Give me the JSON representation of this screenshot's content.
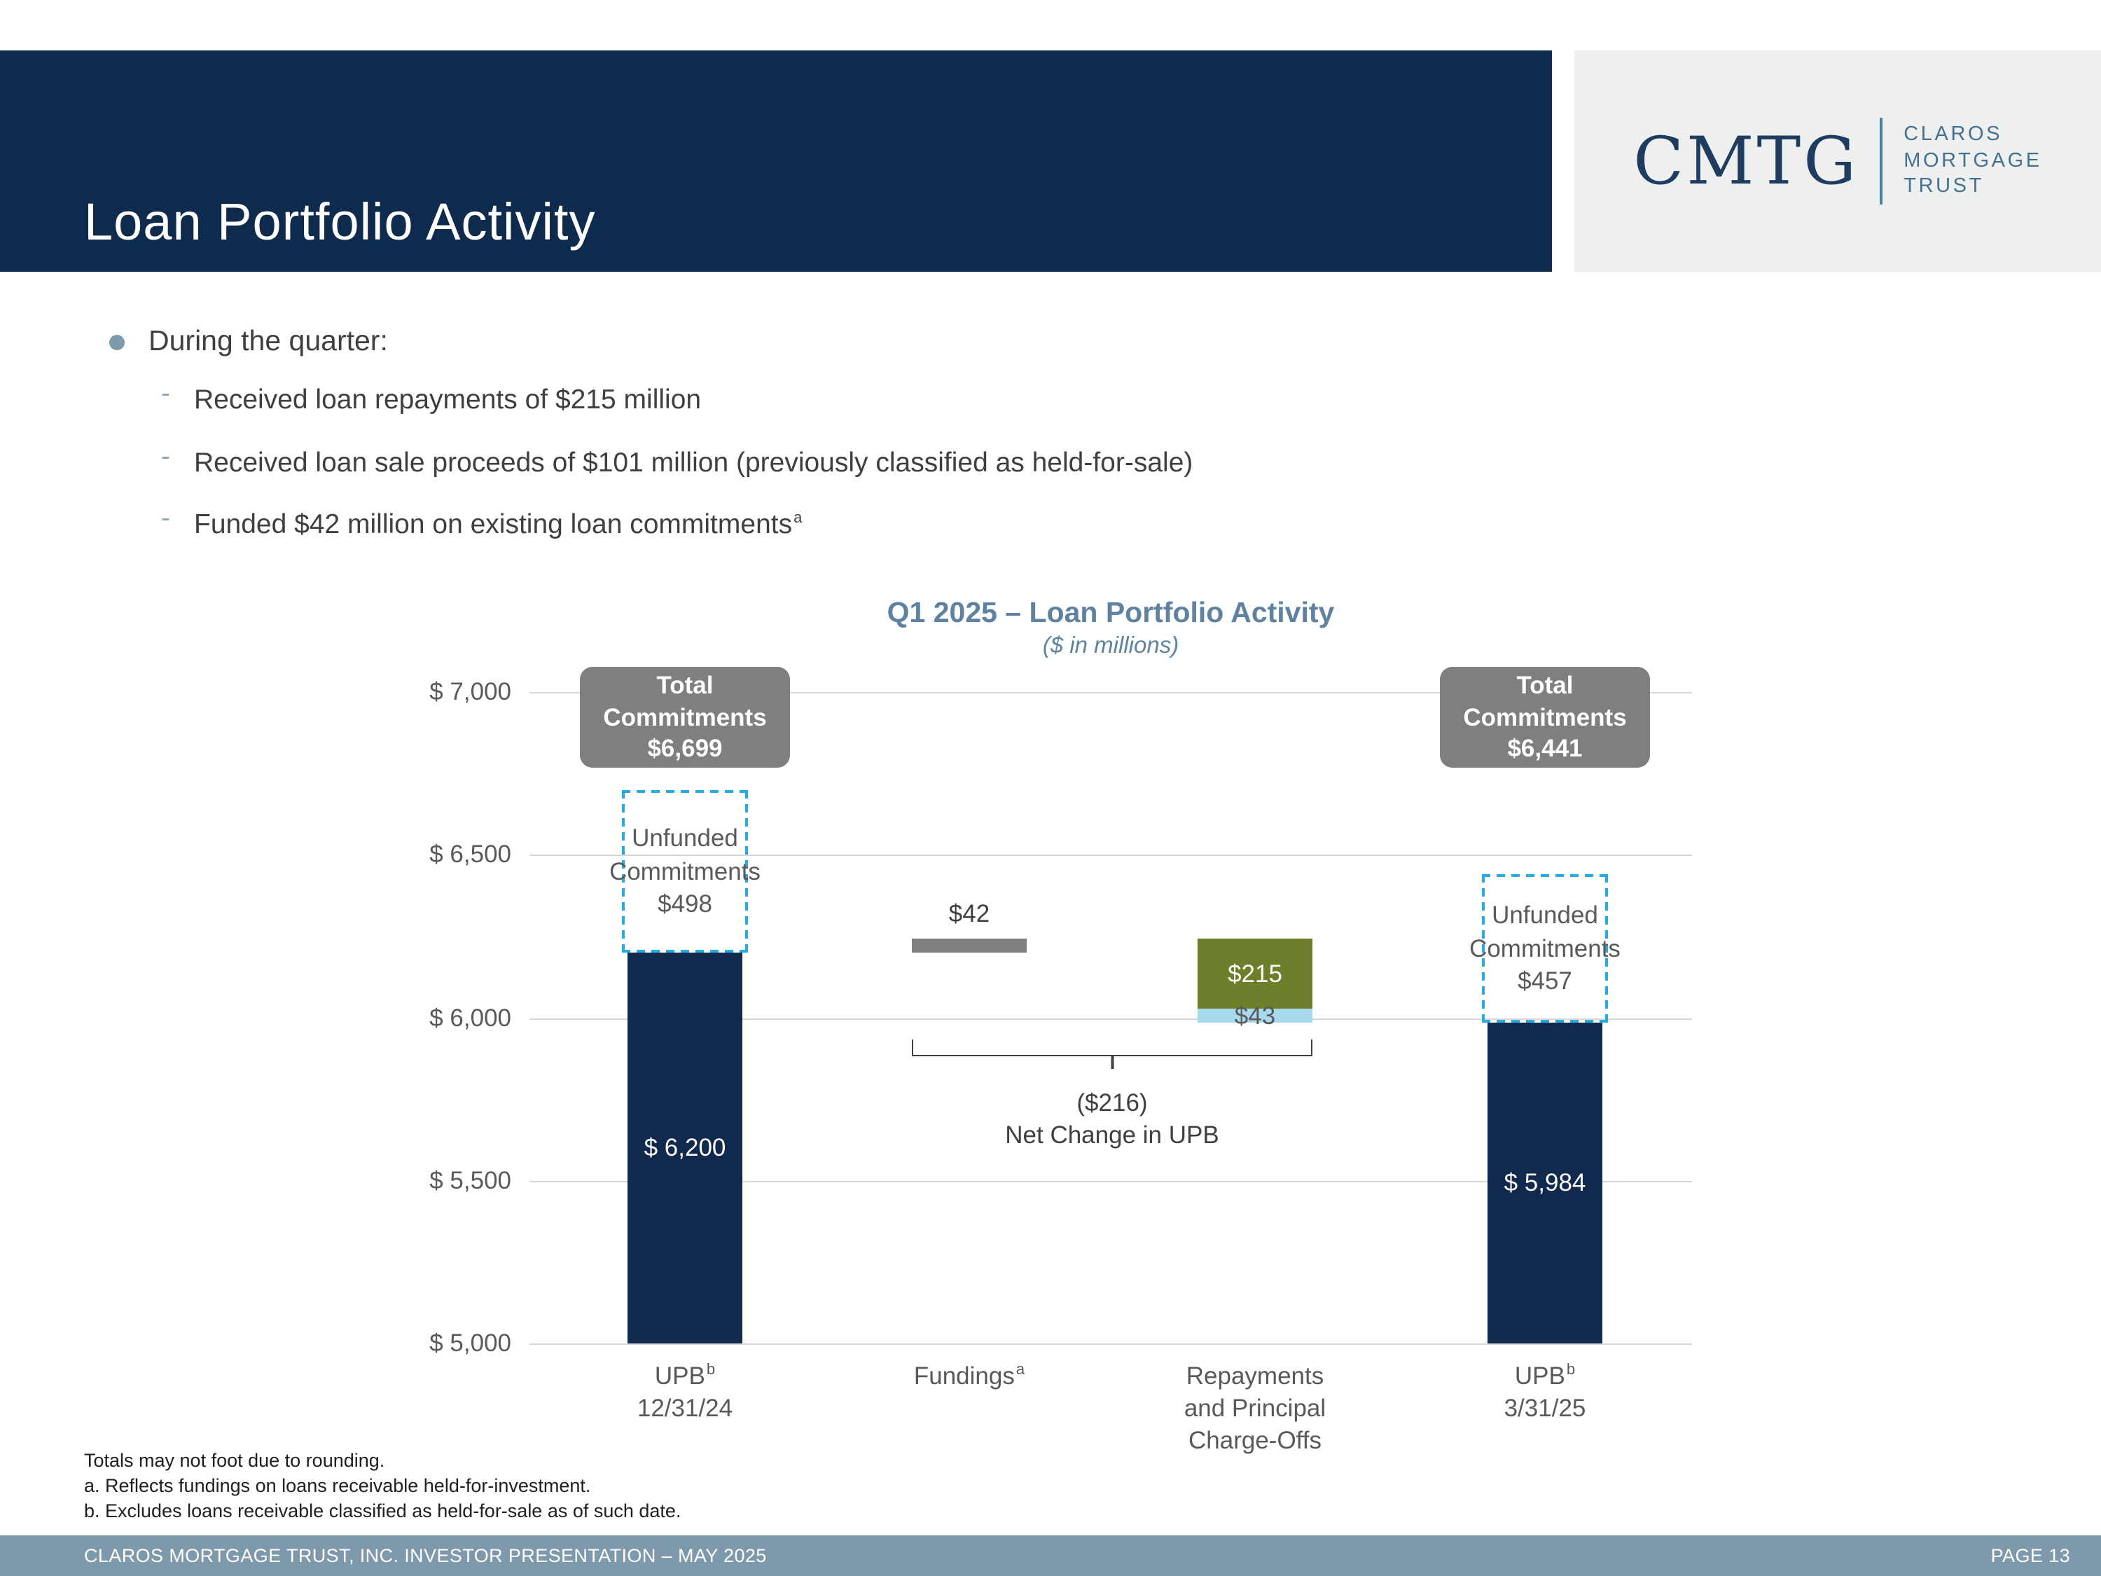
{
  "slide": {
    "title": "Loan Portfolio Activity",
    "logo": {
      "monogram": "CMTG",
      "name_lines": [
        "CLAROS",
        "MORTGAGE",
        "TRUST"
      ]
    },
    "bullets": {
      "marker": "-",
      "lead": "During the quarter:",
      "items": [
        {
          "text": "Received loan repayments of $215 million",
          "sup": ""
        },
        {
          "text": "Received loan sale proceeds of $101 million (previously classified as held-for-sale)",
          "sup": ""
        },
        {
          "text": "Funded $42 million on existing loan commitments",
          "sup": "a"
        }
      ]
    },
    "footnotes": [
      "Totals may not foot due to rounding.",
      "a. Reflects fundings on loans receivable held-for-investment.",
      "b. Excludes loans receivable classified as held-for-sale as of such date."
    ],
    "footer": {
      "left": "CLAROS MORTGAGE TRUST, INC. INVESTOR PRESENTATION – MAY 2025",
      "right": "PAGE 13"
    }
  },
  "chart_data": {
    "type": "bar",
    "variant": "waterfall",
    "title": "Q1 2025 – Loan Portfolio Activity",
    "subtitle": "($ in millions)",
    "ylim": [
      5000,
      7000
    ],
    "ytick_values": [
      7000,
      6500,
      6000,
      5500,
      5000
    ],
    "ytick_labels": [
      "$ 7,000",
      "$ 6,500",
      "$ 6,000",
      "$ 5,500",
      "$ 5,000"
    ],
    "colors": {
      "navy": "#11294d",
      "gray": "#7f7f7f",
      "green": "#6e7f2b",
      "lightblue": "#a9d9ef",
      "dashed_outline": "#29abe2"
    },
    "columns": [
      {
        "id": "upb-start",
        "x_label_lines": [
          "UPB",
          "12/31/24"
        ],
        "x_label_sup": "b",
        "bar": {
          "from": 5000,
          "to": 6200,
          "value": 6200,
          "color": "navy",
          "label": "$ 6,200"
        },
        "unfunded": {
          "from": 6200,
          "to": 6698,
          "value": 498,
          "label_lines": [
            "Unfunded",
            "Commitments",
            "$498"
          ]
        },
        "total_box": {
          "value": 6699,
          "lines": [
            "Total",
            "Commitments",
            "$6,699"
          ]
        }
      },
      {
        "id": "fundings",
        "x_label_lines": [
          "Fundings"
        ],
        "x_label_sup": "a",
        "bar": {
          "from": 6200,
          "to": 6242,
          "value": 42,
          "color": "gray",
          "label_above": "$42"
        }
      },
      {
        "id": "repayments-charge-offs",
        "x_label_lines": [
          "Repayments",
          "and Principal",
          "Charge-Offs"
        ],
        "x_label_sup": "",
        "segments": [
          {
            "from": 6027,
            "to": 6242,
            "value": 215,
            "color": "green",
            "label": "$215"
          },
          {
            "from": 5984,
            "to": 6027,
            "value": 43,
            "color": "lightblue",
            "label": "$43"
          }
        ]
      },
      {
        "id": "upb-end",
        "x_label_lines": [
          "UPB",
          "3/31/25"
        ],
        "x_label_sup": "b",
        "bar": {
          "from": 5000,
          "to": 5984,
          "value": 5984,
          "color": "navy",
          "label": "$ 5,984"
        },
        "unfunded": {
          "from": 5984,
          "to": 6441,
          "value": 457,
          "label_lines": [
            "Unfunded",
            "Commitments",
            "$457"
          ]
        },
        "total_box": {
          "value": 6441,
          "lines": [
            "Total",
            "Commitments",
            "$6,441"
          ]
        }
      }
    ],
    "bracket": {
      "value": -216,
      "label_lines": [
        "($216)",
        "Net Change in UPB"
      ]
    }
  }
}
